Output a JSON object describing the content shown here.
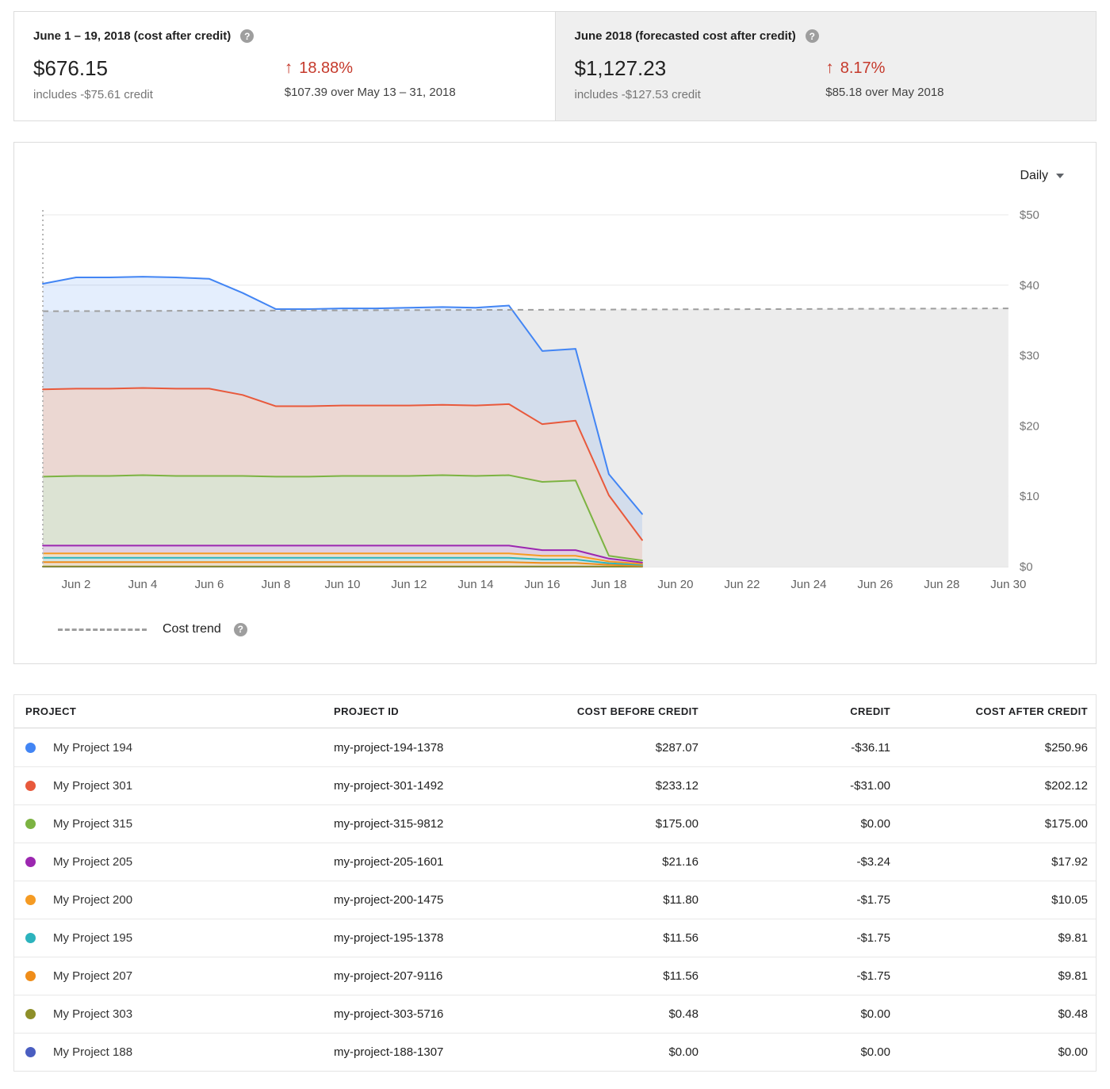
{
  "colors": {
    "increase_red": "#c5392b",
    "trend_gray": "#9e9e9e",
    "forecast_fill": "#ececec",
    "card_gray_bg": "#efefef"
  },
  "summary": {
    "current": {
      "title": "June 1 – 19, 2018 (cost after credit)",
      "amount": "$676.15",
      "credit_note": "includes -$75.61 credit",
      "arrow": "↑",
      "change_pct": "18.88%",
      "change_note": "$107.39 over May 13 – 31, 2018"
    },
    "forecast": {
      "title": "June 2018 (forecasted cost after credit)",
      "amount": "$1,127.23",
      "credit_note": "includes -$127.53 credit",
      "arrow": "↑",
      "change_pct": "8.17%",
      "change_note": "$85.18 over May 2018"
    }
  },
  "chart": {
    "interval_label": "Daily",
    "legend_label": "Cost trend"
  },
  "chart_data": {
    "type": "area",
    "stacked": true,
    "stack_order": "bottom_to_top",
    "x_label_unit": "date (June 2018)",
    "x_range": [
      1,
      30
    ],
    "y_range": [
      0,
      50
    ],
    "grid": true,
    "y_ticks": [
      {
        "value": 0,
        "label": "$0"
      },
      {
        "value": 10,
        "label": "$10"
      },
      {
        "value": 20,
        "label": "$20"
      },
      {
        "value": 30,
        "label": "$30"
      },
      {
        "value": 40,
        "label": "$40"
      },
      {
        "value": 50,
        "label": "$50"
      }
    ],
    "x_ticks": [
      {
        "day": 2,
        "label": "Jun 2"
      },
      {
        "day": 4,
        "label": "Jun 4"
      },
      {
        "day": 6,
        "label": "Jun 6"
      },
      {
        "day": 8,
        "label": "Jun 8"
      },
      {
        "day": 10,
        "label": "Jun 10"
      },
      {
        "day": 12,
        "label": "Jun 12"
      },
      {
        "day": 14,
        "label": "Jun 14"
      },
      {
        "day": 16,
        "label": "Jun 16"
      },
      {
        "day": 18,
        "label": "Jun 18"
      },
      {
        "day": 20,
        "label": "Jun 20"
      },
      {
        "day": 22,
        "label": "Jun 22"
      },
      {
        "day": 24,
        "label": "Jun 24"
      },
      {
        "day": 26,
        "label": "Jun 26"
      },
      {
        "day": 28,
        "label": "Jun 28"
      },
      {
        "day": 30,
        "label": "Jun 30"
      }
    ],
    "days": [
      1,
      2,
      3,
      4,
      5,
      6,
      7,
      8,
      9,
      10,
      11,
      12,
      13,
      14,
      15,
      16,
      17,
      18,
      19
    ],
    "series": [
      {
        "name": "My Project 188",
        "color": "#4a5ec1",
        "values": [
          0,
          0,
          0,
          0,
          0,
          0,
          0,
          0,
          0,
          0,
          0,
          0,
          0,
          0,
          0,
          0,
          0,
          0,
          0
        ]
      },
      {
        "name": "My Project 303",
        "color": "#8e8f29",
        "values": [
          0.03,
          0.03,
          0.03,
          0.03,
          0.03,
          0.03,
          0.03,
          0.03,
          0.03,
          0.03,
          0.03,
          0.03,
          0.03,
          0.03,
          0.03,
          0.03,
          0.03,
          0.02,
          0.01
        ]
      },
      {
        "name": "My Project 207",
        "color": "#ef8d1a",
        "values": [
          0.62,
          0.62,
          0.62,
          0.62,
          0.62,
          0.62,
          0.62,
          0.62,
          0.62,
          0.62,
          0.62,
          0.62,
          0.62,
          0.62,
          0.62,
          0.5,
          0.5,
          0.25,
          0.12
        ]
      },
      {
        "name": "My Project 195",
        "color": "#2cb3bd",
        "values": [
          0.61,
          0.61,
          0.61,
          0.61,
          0.61,
          0.61,
          0.61,
          0.61,
          0.61,
          0.61,
          0.61,
          0.61,
          0.61,
          0.61,
          0.61,
          0.5,
          0.5,
          0.22,
          0.12
        ]
      },
      {
        "name": "My Project 200",
        "color": "#f59b23",
        "values": [
          0.62,
          0.62,
          0.62,
          0.62,
          0.62,
          0.62,
          0.62,
          0.62,
          0.62,
          0.62,
          0.62,
          0.62,
          0.62,
          0.62,
          0.62,
          0.52,
          0.52,
          0.26,
          0.14
        ]
      },
      {
        "name": "My Project 205",
        "color": "#9c27b0",
        "values": [
          1.12,
          1.12,
          1.12,
          1.12,
          1.12,
          1.12,
          1.12,
          1.12,
          1.12,
          1.12,
          1.12,
          1.12,
          1.12,
          1.12,
          1.12,
          0.8,
          0.8,
          0.4,
          0.2
        ]
      },
      {
        "name": "My Project 315",
        "color": "#7cb342",
        "values": [
          9.8,
          9.9,
          9.9,
          10.0,
          9.9,
          9.9,
          9.9,
          9.8,
          9.8,
          9.9,
          9.9,
          9.9,
          10.0,
          9.9,
          10.0,
          9.7,
          9.9,
          0.4,
          0.3
        ]
      },
      {
        "name": "My Project 301",
        "color": "#e8593c",
        "values": [
          12.4,
          12.4,
          12.4,
          12.4,
          12.4,
          12.4,
          11.5,
          10.0,
          10.0,
          10.0,
          10.0,
          10.0,
          10.0,
          10.0,
          10.1,
          8.2,
          8.5,
          8.6,
          2.9
        ]
      },
      {
        "name": "My Project 194",
        "color": "#4285f4",
        "values": [
          15.0,
          15.8,
          15.8,
          15.8,
          15.8,
          15.6,
          14.5,
          13.8,
          13.8,
          13.8,
          13.8,
          13.9,
          13.9,
          13.9,
          14.0,
          10.4,
          10.2,
          3.0,
          3.7
        ]
      }
    ],
    "trend": {
      "label": "Cost trend",
      "start_value": 36.3,
      "end_value": 36.7,
      "color": "#9e9e9e"
    },
    "forecast_region": {
      "fill": "#ececec",
      "x_start": 1,
      "x_end": 30
    }
  },
  "table": {
    "columns": [
      "PROJECT",
      "PROJECT ID",
      "COST BEFORE CREDIT",
      "CREDIT",
      "COST AFTER CREDIT"
    ],
    "rows": [
      {
        "color": "#4285f4",
        "project": "My Project 194",
        "project_id": "my-project-194-1378",
        "cost_before_credit": "$287.07",
        "credit": "-$36.11",
        "cost_after_credit": "$250.96"
      },
      {
        "color": "#e8593c",
        "project": "My Project 301",
        "project_id": "my-project-301-1492",
        "cost_before_credit": "$233.12",
        "credit": "-$31.00",
        "cost_after_credit": "$202.12"
      },
      {
        "color": "#7cb342",
        "project": "My Project 315",
        "project_id": "my-project-315-9812",
        "cost_before_credit": "$175.00",
        "credit": "$0.00",
        "cost_after_credit": "$175.00"
      },
      {
        "color": "#9c27b0",
        "project": "My Project 205",
        "project_id": "my-project-205-1601",
        "cost_before_credit": "$21.16",
        "credit": "-$3.24",
        "cost_after_credit": "$17.92"
      },
      {
        "color": "#f59b23",
        "project": "My Project 200",
        "project_id": "my-project-200-1475",
        "cost_before_credit": "$11.80",
        "credit": "-$1.75",
        "cost_after_credit": "$10.05"
      },
      {
        "color": "#2cb3bd",
        "project": "My Project 195",
        "project_id": "my-project-195-1378",
        "cost_before_credit": "$11.56",
        "credit": "-$1.75",
        "cost_after_credit": "$9.81"
      },
      {
        "color": "#ef8d1a",
        "project": "My Project 207",
        "project_id": "my-project-207-9116",
        "cost_before_credit": "$11.56",
        "credit": "-$1.75",
        "cost_after_credit": "$9.81"
      },
      {
        "color": "#8e8f29",
        "project": "My Project 303",
        "project_id": "my-project-303-5716",
        "cost_before_credit": "$0.48",
        "credit": "$0.00",
        "cost_after_credit": "$0.48"
      },
      {
        "color": "#4a5ec1",
        "project": "My Project 188",
        "project_id": "my-project-188-1307",
        "cost_before_credit": "$0.00",
        "credit": "$0.00",
        "cost_after_credit": "$0.00"
      }
    ]
  }
}
